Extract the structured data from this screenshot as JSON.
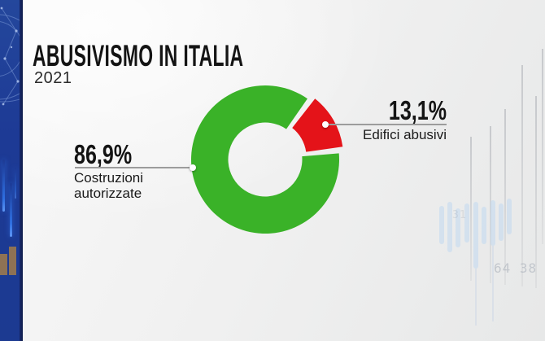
{
  "header": {
    "title": "ABUSIVISMO IN ITALIA",
    "year": "2021"
  },
  "chart_data": {
    "type": "pie",
    "subtype": "donut",
    "title": "ABUSIVISMO IN ITALIA",
    "subtitle": "2021",
    "unit": "%",
    "categories": [
      "Costruzioni autorizzate",
      "Edifici abusivi"
    ],
    "values": [
      86.9,
      13.1
    ],
    "value_labels": [
      "86,9%",
      "13,1%"
    ],
    "colors": [
      "#3ab228",
      "#e41319"
    ],
    "exploded_slice": "Edifici abusivi",
    "legend_position": "callouts-left-right"
  },
  "decor": {
    "watermark_digits_primary": "64 38",
    "watermark_digits_secondary": "31",
    "strip_colors": {
      "blue": "#1d3a95",
      "navy_edge": "#0e1c49",
      "bars_tan": "#8e7254",
      "glow_blue": "#2f6fe0"
    }
  },
  "colors": {
    "green": "#3ab228",
    "red": "#e41319",
    "background": "#f1f1f1",
    "title_text": "#141414",
    "leader_line": "#9c9c9c"
  }
}
